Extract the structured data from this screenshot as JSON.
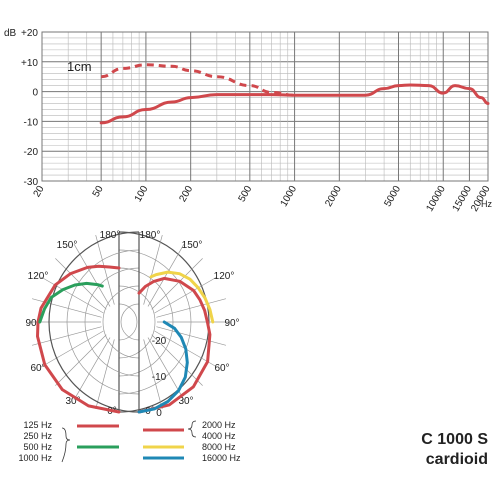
{
  "chart_data": [
    {
      "type": "line",
      "chart": "frequency-response",
      "xscale": "log",
      "xlim": [
        20,
        20000
      ],
      "ylim": [
        -30,
        20
      ],
      "y_unit": "dB",
      "x_unit": "Hz",
      "y_ticks": [
        "+20",
        "+10",
        "0",
        "-10",
        "-20",
        "-30"
      ],
      "y_tick_values": [
        20,
        10,
        0,
        -10,
        -20,
        -30
      ],
      "x_ticks": [
        "20",
        "50",
        "100",
        "200",
        "500",
        "1000",
        "2000",
        "5000",
        "10000",
        "15000",
        "20000"
      ],
      "x_tick_values": [
        20,
        50,
        100,
        200,
        500,
        1000,
        2000,
        5000,
        10000,
        15000,
        20000
      ],
      "annotation": "1cm",
      "line_color": "#d0484c",
      "series": [
        {
          "style": "solid",
          "x": [
            50,
            70,
            100,
            150,
            200,
            300,
            500,
            700,
            1000,
            1500,
            2000,
            3000,
            4000,
            5000,
            6000,
            8000,
            10000,
            12000,
            15000,
            18000,
            20000
          ],
          "y": [
            -10.5,
            -8.5,
            -6,
            -3.5,
            -2,
            -1,
            -1,
            -1,
            -1.2,
            -1.2,
            -1.2,
            -1.2,
            1,
            2,
            2.2,
            2,
            -0.5,
            2,
            1,
            -2,
            -4
          ]
        },
        {
          "style": "dashed",
          "x": [
            50,
            70,
            100,
            150,
            200,
            300,
            500,
            700,
            1000
          ],
          "y": [
            5,
            7.8,
            9,
            8.5,
            7,
            5,
            2,
            -0.3,
            -1.2
          ]
        }
      ]
    },
    {
      "type": "polar",
      "chart": "polar-pattern",
      "title": "C 1000 S",
      "subtitle": "cardioid",
      "angle_ticks": [
        "0°",
        "30°",
        "60°",
        "90°",
        "120°",
        "150°",
        "180°"
      ],
      "angle_tick_values": [
        0,
        30,
        60,
        90,
        120,
        150,
        180
      ],
      "radial_ticks": [
        "-20",
        "-10",
        "0"
      ],
      "radial_tick_values": [
        -20,
        -10,
        0
      ],
      "rlim": [
        -25,
        0
      ],
      "left_half": {
        "series": [
          {
            "name": "125 Hz, 250 Hz, 1000 Hz",
            "labels": [
              "125 Hz",
              "250 Hz",
              "1000 Hz"
            ],
            "color": "#d0484c",
            "angles": [
              0,
              20,
              40,
              60,
              80,
              90,
              100,
              120,
              135,
              150,
              160,
              170,
              180
            ],
            "values": [
              0,
              -0.2,
              -0.5,
              -1.2,
              -2,
              -2.5,
              -3,
              -4.5,
              -6,
              -7.5,
              -8.5,
              -9.5,
              -10
            ]
          },
          {
            "name": "500 Hz",
            "labels": [
              "500 Hz"
            ],
            "color": "#2a9f5c",
            "angles": [
              90,
              100,
              110,
              120,
              130,
              140,
              150,
              155
            ],
            "values": [
              -3,
              -4,
              -5,
              -7,
              -9,
              -11,
              -13,
              -14
            ]
          }
        ]
      },
      "right_half": {
        "series": [
          {
            "name": "2000 Hz, 4000 Hz",
            "labels": [
              "2000 Hz",
              "4000 Hz"
            ],
            "color": "#d0484c",
            "angles": [
              0,
              20,
              40,
              60,
              80,
              90,
              100,
              110,
              120,
              135,
              150,
              160,
              170,
              180
            ],
            "values": [
              0,
              -0.5,
              -1.5,
              -3,
              -5,
              -6,
              -6.5,
              -7,
              -7.5,
              -9,
              -11,
              -13,
              -15,
              -17
            ]
          },
          {
            "name": "8000 Hz",
            "labels": [
              "8000 Hz"
            ],
            "color": "#f0d44a",
            "angles": [
              90,
              100,
              110,
              120,
              130,
              140,
              150,
              160,
              165
            ],
            "values": [
              -4.5,
              -5,
              -5.5,
              -6,
              -6.5,
              -7.5,
              -9,
              -11,
              -12
            ]
          },
          {
            "name": "16000 Hz",
            "labels": [
              "16000 Hz"
            ],
            "color": "#1f88b5",
            "angles": [
              0,
              10,
              20,
              30,
              40,
              50,
              60,
              70,
              80,
              90
            ],
            "values": [
              0,
              -0.5,
              -1.5,
              -3,
              -5,
              -7.5,
              -10,
              -12.5,
              -15,
              -18
            ]
          }
        ]
      }
    }
  ]
}
